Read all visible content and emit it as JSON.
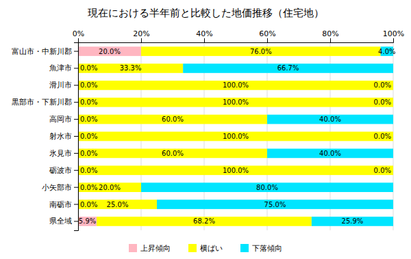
{
  "chart_data": {
    "type": "bar",
    "orientation": "horizontal",
    "stacked": true,
    "title": "現在における半年前と比較した地価推移（住宅地）",
    "categories": [
      "富山市・中新川郡",
      "魚津市",
      "滑川市",
      "黒部市・下新川郡",
      "高岡市",
      "射水市",
      "氷見市",
      "砺波市",
      "小矢部市",
      "南砺市",
      "県全域"
    ],
    "series": [
      {
        "name": "上昇傾向",
        "color": "#ffb6c1",
        "values": [
          20.0,
          0.0,
          0.0,
          0.0,
          0.0,
          0.0,
          0.0,
          0.0,
          0.0,
          0.0,
          5.9
        ],
        "value_labels": [
          "20.0%",
          "0.0%",
          "0.0%",
          "0.0%",
          "0.0%",
          "0.0%",
          "0.0%",
          "0.0%",
          "0.0%",
          "0.0%",
          "5.9%"
        ]
      },
      {
        "name": "横ばい",
        "color": "#ffff00",
        "values": [
          76.0,
          33.3,
          100.0,
          100.0,
          60.0,
          100.0,
          60.0,
          100.0,
          20.0,
          25.0,
          68.2
        ],
        "value_labels": [
          "76.0%",
          "33.3%",
          "100.0%",
          "100.0%",
          "60.0%",
          "100.0%",
          "60.0%",
          "100.0%",
          "20.0%",
          "25.0%",
          "68.2%"
        ]
      },
      {
        "name": "下落傾向",
        "color": "#00e5ff",
        "values": [
          4.0,
          66.7,
          0.0,
          0.0,
          40.0,
          0.0,
          40.0,
          0.0,
          80.0,
          75.0,
          25.9
        ],
        "value_labels": [
          "4.0%",
          "66.7%",
          "0.0%",
          "0.0%",
          "40.0%",
          "0.0%",
          "40.0%",
          "0.0%",
          "80.0%",
          "75.0%",
          "25.9%"
        ]
      }
    ],
    "xlim": [
      0,
      100
    ],
    "xticks": [
      {
        "value": 0,
        "label": "0%"
      },
      {
        "value": 20,
        "label": "20%"
      },
      {
        "value": 40,
        "label": "40%"
      },
      {
        "value": 60,
        "label": "60%"
      },
      {
        "value": 80,
        "label": "80%"
      },
      {
        "value": 100,
        "label": "100%"
      }
    ],
    "grid": true,
    "data_labels": true,
    "legend": "bottom"
  }
}
